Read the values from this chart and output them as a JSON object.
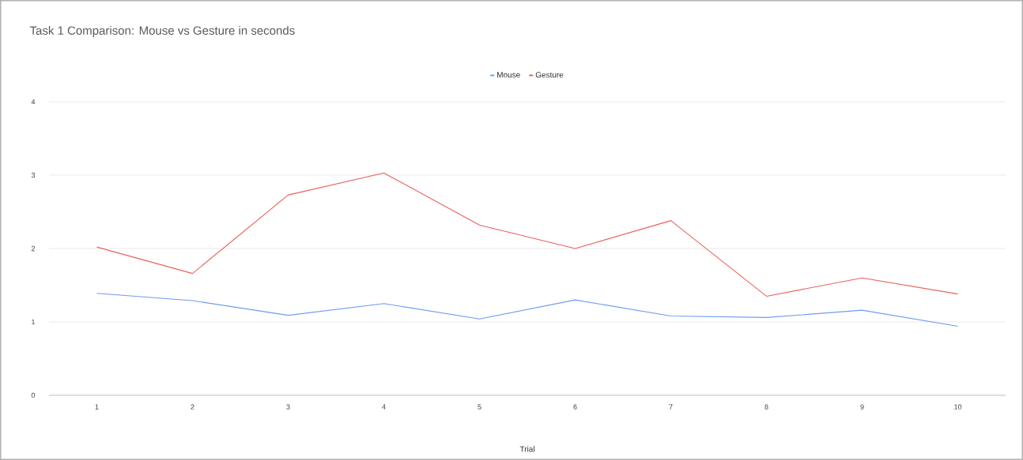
{
  "chart_data": {
    "type": "line",
    "title": "Task 1 Comparison: Mouse vs Gesture in seconds",
    "xlabel": "Trial",
    "categories": [
      "1",
      "2",
      "3",
      "4",
      "5",
      "6",
      "7",
      "8",
      "9",
      "10"
    ],
    "series": [
      {
        "name": "Mouse",
        "color": "#6f9cf0",
        "values": [
          1.39,
          1.29,
          1.09,
          1.25,
          1.04,
          1.3,
          1.08,
          1.06,
          1.16,
          0.94
        ]
      },
      {
        "name": "Gesture",
        "color": "#e8625c",
        "values": [
          2.02,
          1.66,
          2.73,
          3.03,
          2.32,
          2.0,
          2.38,
          1.35,
          1.6,
          1.38
        ]
      }
    ],
    "ylim": [
      0,
      4
    ],
    "yticks": [
      0,
      1,
      2,
      3,
      4
    ],
    "grid": "y",
    "legend": "top",
    "marker": "none",
    "line_style": "solid"
  }
}
